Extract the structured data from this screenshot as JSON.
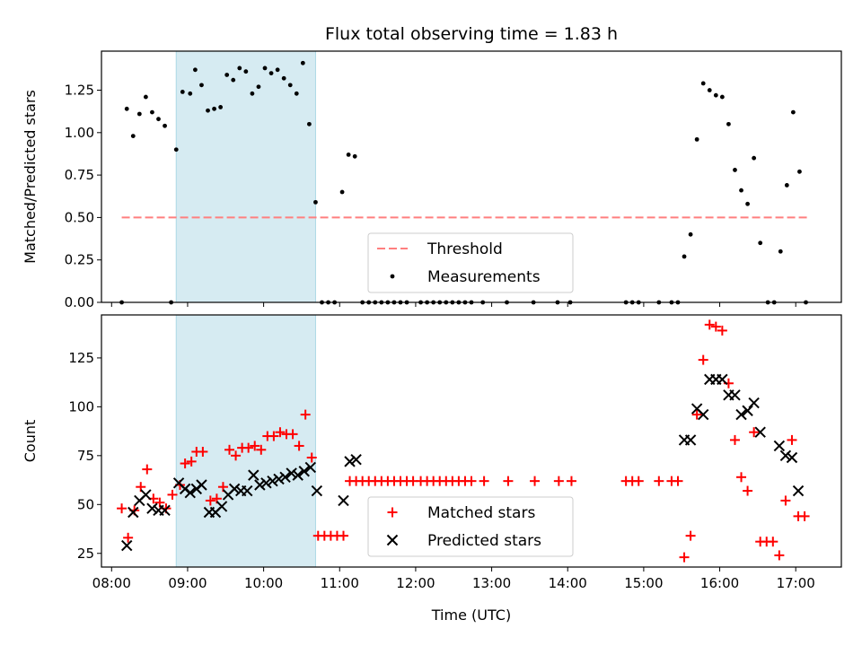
{
  "chart_data": [
    {
      "type": "scatter",
      "title": "Flux total observing time = 1.83 h",
      "ylabel": "Matched/Predicted stars",
      "xlim": [
        "07:52",
        "17:36"
      ],
      "ylim": [
        0,
        1.48
      ],
      "yticks": [
        0.0,
        0.25,
        0.5,
        0.75,
        1.0,
        1.25
      ],
      "ytick_labels": [
        "0.00",
        "0.25",
        "0.50",
        "0.75",
        "1.00",
        "1.25"
      ],
      "grid": false,
      "legend": "lower-center",
      "highlight_span": [
        "08:51",
        "10:41"
      ],
      "threshold": {
        "name": "Threshold",
        "value": 0.5,
        "x": [
          "08:08",
          "17:09"
        ],
        "color": "#ff7f7f"
      },
      "series": [
        {
          "name": "Measurements",
          "color": "#000000",
          "points": [
            [
              "08:08",
              0.0
            ],
            [
              "08:12",
              1.14
            ],
            [
              "08:17",
              0.98
            ],
            [
              "08:22",
              1.11
            ],
            [
              "08:27",
              1.21
            ],
            [
              "08:32",
              1.12
            ],
            [
              "08:37",
              1.08
            ],
            [
              "08:42",
              1.04
            ],
            [
              "08:47",
              0.0
            ],
            [
              "08:51",
              0.9
            ],
            [
              "08:56",
              1.24
            ],
            [
              "09:02",
              1.23
            ],
            [
              "09:06",
              1.37
            ],
            [
              "09:11",
              1.28
            ],
            [
              "09:16",
              1.13
            ],
            [
              "09:21",
              1.14
            ],
            [
              "09:26",
              1.15
            ],
            [
              "09:31",
              1.34
            ],
            [
              "09:36",
              1.31
            ],
            [
              "09:41",
              1.38
            ],
            [
              "09:46",
              1.36
            ],
            [
              "09:51",
              1.23
            ],
            [
              "09:56",
              1.27
            ],
            [
              "10:01",
              1.38
            ],
            [
              "10:06",
              1.35
            ],
            [
              "10:11",
              1.37
            ],
            [
              "10:16",
              1.32
            ],
            [
              "10:21",
              1.28
            ],
            [
              "10:26",
              1.23
            ],
            [
              "10:31",
              1.41
            ],
            [
              "10:36",
              1.05
            ],
            [
              "10:41",
              0.59
            ],
            [
              "10:46",
              0.0
            ],
            [
              "10:51",
              0.0
            ],
            [
              "10:56",
              0.0
            ],
            [
              "11:02",
              0.65
            ],
            [
              "11:07",
              0.87
            ],
            [
              "11:12",
              0.86
            ],
            [
              "11:18",
              0.0
            ],
            [
              "11:23",
              0.0
            ],
            [
              "11:28",
              0.0
            ],
            [
              "11:33",
              0.0
            ],
            [
              "11:38",
              0.0
            ],
            [
              "11:43",
              0.0
            ],
            [
              "11:48",
              0.0
            ],
            [
              "11:53",
              0.0
            ],
            [
              "12:04",
              0.0
            ],
            [
              "12:09",
              0.0
            ],
            [
              "12:14",
              0.0
            ],
            [
              "12:19",
              0.0
            ],
            [
              "12:24",
              0.0
            ],
            [
              "12:29",
              0.0
            ],
            [
              "12:34",
              0.0
            ],
            [
              "12:39",
              0.0
            ],
            [
              "12:44",
              0.0
            ],
            [
              "12:53",
              0.0
            ],
            [
              "13:12",
              0.0
            ],
            [
              "13:33",
              0.0
            ],
            [
              "13:52",
              0.0
            ],
            [
              "14:02",
              0.0
            ],
            [
              "14:46",
              0.0
            ],
            [
              "14:51",
              0.0
            ],
            [
              "14:56",
              0.0
            ],
            [
              "15:12",
              0.0
            ],
            [
              "15:22",
              0.0
            ],
            [
              "15:27",
              0.0
            ],
            [
              "15:32",
              0.27
            ],
            [
              "15:37",
              0.4
            ],
            [
              "15:42",
              0.96
            ],
            [
              "15:47",
              1.29
            ],
            [
              "15:52",
              1.25
            ],
            [
              "15:57",
              1.22
            ],
            [
              "16:02",
              1.21
            ],
            [
              "16:07",
              1.05
            ],
            [
              "16:12",
              0.78
            ],
            [
              "16:17",
              0.66
            ],
            [
              "16:22",
              0.58
            ],
            [
              "16:27",
              0.85
            ],
            [
              "16:32",
              0.35
            ],
            [
              "16:38",
              0.0
            ],
            [
              "16:43",
              0.0
            ],
            [
              "16:48",
              0.3
            ],
            [
              "16:53",
              0.69
            ],
            [
              "16:58",
              1.12
            ],
            [
              "17:03",
              0.77
            ],
            [
              "17:08",
              0.0
            ]
          ]
        }
      ]
    },
    {
      "type": "scatter",
      "xlabel": "Time (UTC)",
      "ylabel": "Count",
      "xlim": [
        "07:52",
        "17:36"
      ],
      "ylim": [
        18,
        147
      ],
      "xticks": [
        "08:00",
        "09:00",
        "10:00",
        "11:00",
        "12:00",
        "13:00",
        "14:00",
        "15:00",
        "16:00",
        "17:00"
      ],
      "yticks": [
        25,
        50,
        75,
        100,
        125
      ],
      "grid": false,
      "legend": "lower-center",
      "highlight_span": [
        "08:51",
        "10:41"
      ],
      "series": [
        {
          "name": "Matched stars",
          "marker": "+",
          "color": "#ff0000",
          "points": [
            [
              "08:08",
              48
            ],
            [
              "08:13",
              33
            ],
            [
              "08:18",
              47
            ],
            [
              "08:23",
              59
            ],
            [
              "08:28",
              68
            ],
            [
              "08:33",
              53
            ],
            [
              "08:38",
              51
            ],
            [
              "08:43",
              48
            ],
            [
              "08:48",
              55
            ],
            [
              "08:54",
              60
            ],
            [
              "08:58",
              71
            ],
            [
              "09:03",
              72
            ],
            [
              "09:07",
              77
            ],
            [
              "09:12",
              77
            ],
            [
              "09:18",
              52
            ],
            [
              "09:23",
              53
            ],
            [
              "09:28",
              59
            ],
            [
              "09:33",
              78
            ],
            [
              "09:38",
              75
            ],
            [
              "09:43",
              79
            ],
            [
              "09:48",
              79
            ],
            [
              "09:53",
              80
            ],
            [
              "09:58",
              78
            ],
            [
              "10:03",
              85
            ],
            [
              "10:08",
              85
            ],
            [
              "10:13",
              87
            ],
            [
              "10:18",
              86
            ],
            [
              "10:23",
              86
            ],
            [
              "10:28",
              80
            ],
            [
              "10:33",
              96
            ],
            [
              "10:38",
              74
            ],
            [
              "10:43",
              34
            ],
            [
              "10:48",
              34
            ],
            [
              "10:53",
              34
            ],
            [
              "10:58",
              34
            ],
            [
              "11:03",
              34
            ],
            [
              "11:08",
              62
            ],
            [
              "11:13",
              62
            ],
            [
              "11:18",
              62
            ],
            [
              "11:23",
              62
            ],
            [
              "11:28",
              62
            ],
            [
              "11:33",
              62
            ],
            [
              "11:38",
              62
            ],
            [
              "11:43",
              62
            ],
            [
              "11:48",
              62
            ],
            [
              "11:53",
              62
            ],
            [
              "11:58",
              62
            ],
            [
              "12:04",
              62
            ],
            [
              "12:09",
              62
            ],
            [
              "12:14",
              62
            ],
            [
              "12:19",
              62
            ],
            [
              "12:24",
              62
            ],
            [
              "12:29",
              62
            ],
            [
              "12:34",
              62
            ],
            [
              "12:39",
              62
            ],
            [
              "12:44",
              62
            ],
            [
              "12:54",
              62
            ],
            [
              "13:13",
              62
            ],
            [
              "13:34",
              62
            ],
            [
              "13:53",
              62
            ],
            [
              "14:03",
              62
            ],
            [
              "14:46",
              62
            ],
            [
              "14:51",
              62
            ],
            [
              "14:56",
              62
            ],
            [
              "15:12",
              62
            ],
            [
              "15:22",
              62
            ],
            [
              "15:27",
              62
            ],
            [
              "15:32",
              23
            ],
            [
              "15:37",
              34
            ],
            [
              "15:42",
              96
            ],
            [
              "15:47",
              124
            ],
            [
              "15:52",
              142
            ],
            [
              "15:57",
              141
            ],
            [
              "16:02",
              139
            ],
            [
              "16:07",
              112
            ],
            [
              "16:12",
              83
            ],
            [
              "16:17",
              64
            ],
            [
              "16:22",
              57
            ],
            [
              "16:27",
              87
            ],
            [
              "16:32",
              31
            ],
            [
              "16:37",
              31
            ],
            [
              "16:42",
              31
            ],
            [
              "16:47",
              24
            ],
            [
              "16:52",
              52
            ],
            [
              "16:57",
              83
            ],
            [
              "17:02",
              44
            ],
            [
              "17:07",
              44
            ]
          ]
        },
        {
          "name": "Predicted stars",
          "marker": "x",
          "color": "#000000",
          "points": [
            [
              "08:12",
              29
            ],
            [
              "08:17",
              46
            ],
            [
              "08:22",
              52
            ],
            [
              "08:27",
              55
            ],
            [
              "08:32",
              48
            ],
            [
              "08:37",
              47
            ],
            [
              "08:42",
              47
            ],
            [
              "08:53",
              61
            ],
            [
              "08:58",
              58
            ],
            [
              "09:02",
              56
            ],
            [
              "09:07",
              58
            ],
            [
              "09:11",
              60
            ],
            [
              "09:17",
              46
            ],
            [
              "09:22",
              46
            ],
            [
              "09:27",
              49
            ],
            [
              "09:32",
              55
            ],
            [
              "09:37",
              58
            ],
            [
              "09:42",
              57
            ],
            [
              "09:47",
              57
            ],
            [
              "09:52",
              65
            ],
            [
              "09:57",
              60
            ],
            [
              "10:02",
              61
            ],
            [
              "10:07",
              62
            ],
            [
              "10:12",
              63
            ],
            [
              "10:17",
              64
            ],
            [
              "10:22",
              66
            ],
            [
              "10:27",
              65
            ],
            [
              "10:32",
              67
            ],
            [
              "10:37",
              69
            ],
            [
              "10:42",
              57
            ],
            [
              "11:03",
              52
            ],
            [
              "11:08",
              72
            ],
            [
              "11:13",
              73
            ],
            [
              "15:32",
              83
            ],
            [
              "15:37",
              83
            ],
            [
              "15:42",
              99
            ],
            [
              "15:47",
              96
            ],
            [
              "15:52",
              114
            ],
            [
              "15:57",
              114
            ],
            [
              "16:02",
              114
            ],
            [
              "16:07",
              106
            ],
            [
              "16:12",
              106
            ],
            [
              "16:17",
              96
            ],
            [
              "16:22",
              98
            ],
            [
              "16:27",
              102
            ],
            [
              "16:32",
              87
            ],
            [
              "16:47",
              80
            ],
            [
              "16:52",
              75
            ],
            [
              "16:57",
              74
            ],
            [
              "17:02",
              57
            ]
          ]
        }
      ]
    }
  ]
}
